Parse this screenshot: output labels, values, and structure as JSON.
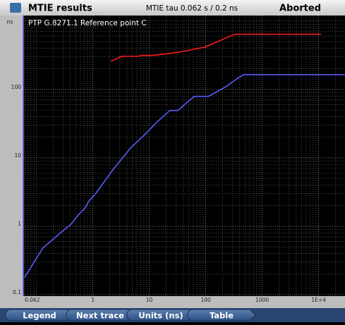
{
  "header": {
    "title": "MTIE results",
    "info": "MTIE tau 0.062 s / 0.2 ns",
    "status": "Aborted"
  },
  "chart_data": {
    "type": "line",
    "title": "PTP G.8271.1 Reference point C",
    "ylabel": "ns",
    "xlog": true,
    "ylog": true,
    "grid": true,
    "xlim": [
      0.062,
      29300
    ],
    "ylim": [
      0.1,
      1200
    ],
    "xticks": [
      0.062,
      1,
      10,
      100,
      1000,
      {
        "value": 10000,
        "label": "1E+4"
      }
    ],
    "yticks": [
      0.1,
      1,
      10,
      100
    ],
    "series": [
      {
        "color": "#5a5aff",
        "x": [
          0.062,
          0.13,
          0.27,
          0.41,
          0.55,
          0.73,
          0.84,
          1.12,
          2.3,
          4.7,
          8.4,
          13,
          23,
          32,
          47,
          63,
          112,
          230,
          356,
          470,
          29000
        ],
        "values": [
          0.18,
          0.48,
          0.81,
          1.07,
          1.46,
          1.85,
          2.3,
          3,
          6.8,
          14,
          22,
          32,
          49,
          49,
          65,
          79,
          79,
          110,
          143,
          164,
          164
        ]
      },
      {
        "color": "#ff1a1a",
        "x": [
          2.1,
          3.3,
          6.3,
          7.3,
          11,
          23,
          41,
          97,
          324,
          11000
        ],
        "values": [
          258,
          305,
          305,
          313,
          313,
          335,
          360,
          415,
          640,
          640
        ]
      }
    ]
  },
  "buttons": [
    "Legend",
    "Next trace",
    "Units (ns)",
    "Table"
  ]
}
